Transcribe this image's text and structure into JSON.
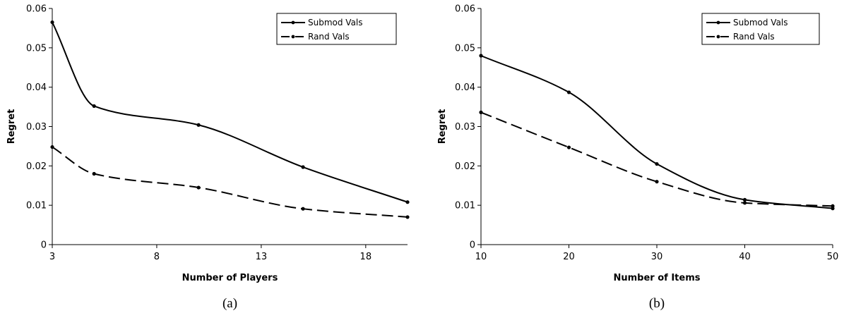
{
  "chart_data": [
    {
      "type": "line",
      "caption": "(a)",
      "xlabel": "Number of Players",
      "ylabel": "Regret",
      "xlim": [
        3,
        20
      ],
      "ylim": [
        0,
        0.06
      ],
      "xticks": [
        3,
        8,
        13,
        18
      ],
      "yticks": [
        0,
        0.01,
        0.02,
        0.03,
        0.04,
        0.05,
        0.06
      ],
      "ytick_labels": [
        "0",
        "0.01",
        "0.02",
        "0.03",
        "0.04",
        "0.05",
        "0.06"
      ],
      "grid": false,
      "legend_position": "top-right",
      "series": [
        {
          "name": "Submod Vals",
          "style": "solid",
          "x": [
            3,
            5,
            10,
            15,
            20
          ],
          "y": [
            0.0565,
            0.0352,
            0.0304,
            0.0197,
            0.0108
          ]
        },
        {
          "name": "Rand Vals",
          "style": "dashed",
          "x": [
            3,
            5,
            10,
            15,
            20
          ],
          "y": [
            0.0248,
            0.018,
            0.0145,
            0.0091,
            0.007
          ]
        }
      ]
    },
    {
      "type": "line",
      "caption": "(b)",
      "xlabel": "Number of Items",
      "ylabel": "Regret",
      "xlim": [
        10,
        50
      ],
      "ylim": [
        0,
        0.06
      ],
      "xticks": [
        10,
        20,
        30,
        40,
        50
      ],
      "yticks": [
        0,
        0.01,
        0.02,
        0.03,
        0.04,
        0.05,
        0.06
      ],
      "ytick_labels": [
        "0",
        "0.01",
        "0.02",
        "0.03",
        "0.04",
        "0.05",
        "0.06"
      ],
      "grid": false,
      "legend_position": "top-right",
      "series": [
        {
          "name": "Submod Vals",
          "style": "solid",
          "x": [
            10,
            20,
            30,
            40,
            50
          ],
          "y": [
            0.048,
            0.0387,
            0.0205,
            0.0114,
            0.0092
          ]
        },
        {
          "name": "Rand Vals",
          "style": "dashed",
          "x": [
            10,
            20,
            30,
            40,
            50
          ],
          "y": [
            0.0336,
            0.0247,
            0.016,
            0.0106,
            0.0098
          ]
        }
      ]
    }
  ]
}
